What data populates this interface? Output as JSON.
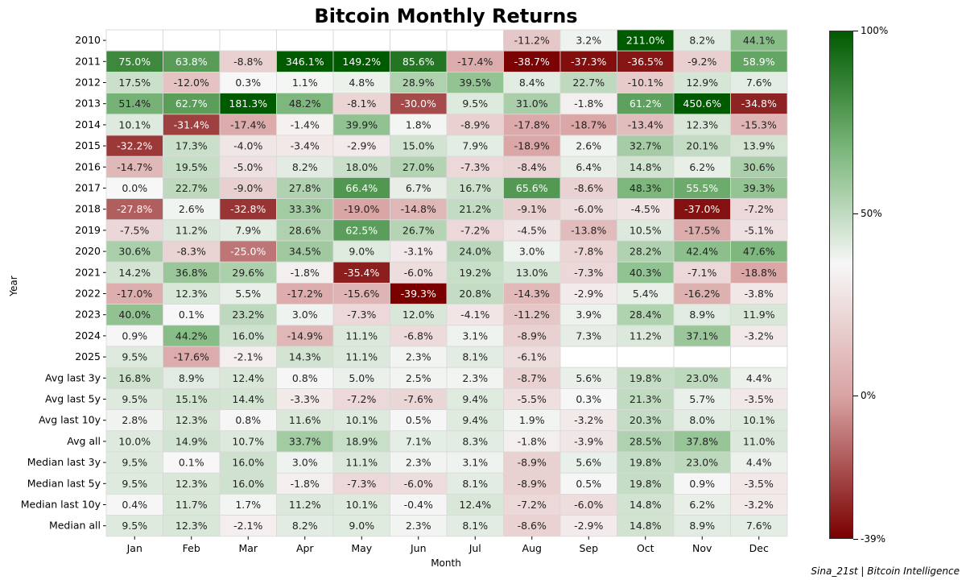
{
  "chart_data": {
    "type": "heatmap",
    "title": "Bitcoin Monthly Returns",
    "xlabel": "Month",
    "ylabel": "Year",
    "columns": [
      "Jan",
      "Feb",
      "Mar",
      "Apr",
      "May",
      "Jun",
      "Jul",
      "Aug",
      "Sep",
      "Oct",
      "Nov",
      "Dec"
    ],
    "rows": [
      {
        "label": "2010",
        "values": [
          null,
          null,
          null,
          null,
          null,
          null,
          null,
          -11.2,
          3.2,
          211.0,
          8.2,
          44.1
        ]
      },
      {
        "label": "2011",
        "values": [
          75.0,
          63.8,
          -8.8,
          346.1,
          149.2,
          85.6,
          -17.4,
          -38.7,
          -37.3,
          -36.5,
          -9.2,
          58.9
        ]
      },
      {
        "label": "2012",
        "values": [
          17.5,
          -12.0,
          0.3,
          1.1,
          4.8,
          28.9,
          39.5,
          8.4,
          22.7,
          -10.1,
          12.9,
          7.6
        ]
      },
      {
        "label": "2013",
        "values": [
          51.4,
          62.7,
          181.3,
          48.2,
          -8.1,
          -30.0,
          9.5,
          31.0,
          -1.8,
          61.2,
          450.6,
          -34.8
        ]
      },
      {
        "label": "2014",
        "values": [
          10.1,
          -31.4,
          -17.4,
          -1.4,
          39.9,
          1.8,
          -8.9,
          -17.8,
          -18.7,
          -13.4,
          12.3,
          -15.3
        ]
      },
      {
        "label": "2015",
        "values": [
          -32.2,
          17.3,
          -4.0,
          -3.4,
          -2.9,
          15.0,
          7.9,
          -18.9,
          2.6,
          32.7,
          20.1,
          13.9
        ]
      },
      {
        "label": "2016",
        "values": [
          -14.7,
          19.5,
          -5.0,
          8.2,
          18.0,
          27.0,
          -7.3,
          -8.4,
          6.4,
          14.8,
          6.2,
          30.6
        ]
      },
      {
        "label": "2017",
        "values": [
          -0.0,
          22.7,
          -9.0,
          27.8,
          66.4,
          6.7,
          16.7,
          65.6,
          -8.6,
          48.3,
          55.5,
          39.3
        ]
      },
      {
        "label": "2018",
        "values": [
          -27.8,
          2.6,
          -32.8,
          33.3,
          -19.0,
          -14.8,
          21.2,
          -9.1,
          -6.0,
          -4.5,
          -37.0,
          -7.2
        ]
      },
      {
        "label": "2019",
        "values": [
          -7.5,
          11.2,
          7.9,
          28.6,
          62.5,
          26.7,
          -7.2,
          -4.5,
          -13.8,
          10.5,
          -17.5,
          -5.1
        ]
      },
      {
        "label": "2020",
        "values": [
          30.6,
          -8.3,
          -25.0,
          34.5,
          9.0,
          -3.1,
          24.0,
          3.0,
          -7.8,
          28.2,
          42.4,
          47.6
        ]
      },
      {
        "label": "2021",
        "values": [
          14.2,
          36.8,
          29.6,
          -1.8,
          -35.4,
          -6.0,
          19.2,
          13.0,
          -7.3,
          40.3,
          -7.1,
          -18.8
        ]
      },
      {
        "label": "2022",
        "values": [
          -17.0,
          12.3,
          5.5,
          -17.2,
          -15.6,
          -39.3,
          20.8,
          -14.3,
          -2.9,
          5.4,
          -16.2,
          -3.8
        ]
      },
      {
        "label": "2023",
        "values": [
          40.0,
          0.1,
          23.2,
          3.0,
          -7.3,
          12.0,
          -4.1,
          -11.2,
          3.9,
          28.4,
          8.9,
          11.9
        ]
      },
      {
        "label": "2024",
        "values": [
          0.9,
          44.2,
          16.0,
          -14.9,
          11.1,
          -6.8,
          3.1,
          -8.9,
          7.3,
          11.2,
          37.1,
          -3.2
        ]
      },
      {
        "label": "2025",
        "values": [
          9.5,
          -17.6,
          -2.1,
          14.3,
          11.1,
          2.3,
          8.1,
          -6.1,
          null,
          null,
          null,
          null
        ]
      },
      {
        "label": "Avg last 3y",
        "values": [
          16.8,
          8.9,
          12.4,
          0.8,
          5.0,
          2.5,
          2.3,
          -8.7,
          5.6,
          19.8,
          23.0,
          4.4
        ]
      },
      {
        "label": "Avg last 5y",
        "values": [
          9.5,
          15.1,
          14.4,
          -3.3,
          -7.2,
          -7.6,
          9.4,
          -5.5,
          0.3,
          21.3,
          5.7,
          -3.5
        ]
      },
      {
        "label": "Avg last 10y",
        "values": [
          2.8,
          12.3,
          0.8,
          11.6,
          10.1,
          0.5,
          9.4,
          1.9,
          -3.2,
          20.3,
          8.0,
          10.1
        ]
      },
      {
        "label": "Avg all",
        "values": [
          10.0,
          14.9,
          10.7,
          33.7,
          18.9,
          7.1,
          8.3,
          -1.8,
          -3.9,
          28.5,
          37.8,
          11.0
        ]
      },
      {
        "label": "Median last 3y",
        "values": [
          9.5,
          0.1,
          16.0,
          3.0,
          11.1,
          2.3,
          3.1,
          -8.9,
          5.6,
          19.8,
          23.0,
          4.4
        ]
      },
      {
        "label": "Median last 5y",
        "values": [
          9.5,
          12.3,
          16.0,
          -1.8,
          -7.3,
          -6.0,
          8.1,
          -8.9,
          0.5,
          19.8,
          0.9,
          -3.5
        ]
      },
      {
        "label": "Median last 10y",
        "values": [
          0.4,
          11.7,
          1.7,
          11.2,
          10.1,
          -0.4,
          12.4,
          -7.2,
          -6.0,
          14.8,
          6.2,
          -3.2
        ]
      },
      {
        "label": "Median all",
        "values": [
          9.5,
          12.3,
          -2.1,
          8.2,
          9.0,
          2.3,
          8.1,
          -8.6,
          -2.9,
          14.8,
          8.9,
          7.6
        ]
      }
    ],
    "color_scale": {
      "min": -39,
      "max": 100,
      "center": 0,
      "tick_labels": [
        "100%",
        "50%",
        "0%",
        "-39%"
      ],
      "tick_values": [
        100,
        50,
        0,
        -39
      ],
      "colors": {
        "max": "#005a00",
        "mid": "#f7f7f7",
        "min": "#7a0000"
      }
    },
    "value_suffix": "%"
  },
  "credit": "Sina_21st | Bitcoin Intelligence"
}
